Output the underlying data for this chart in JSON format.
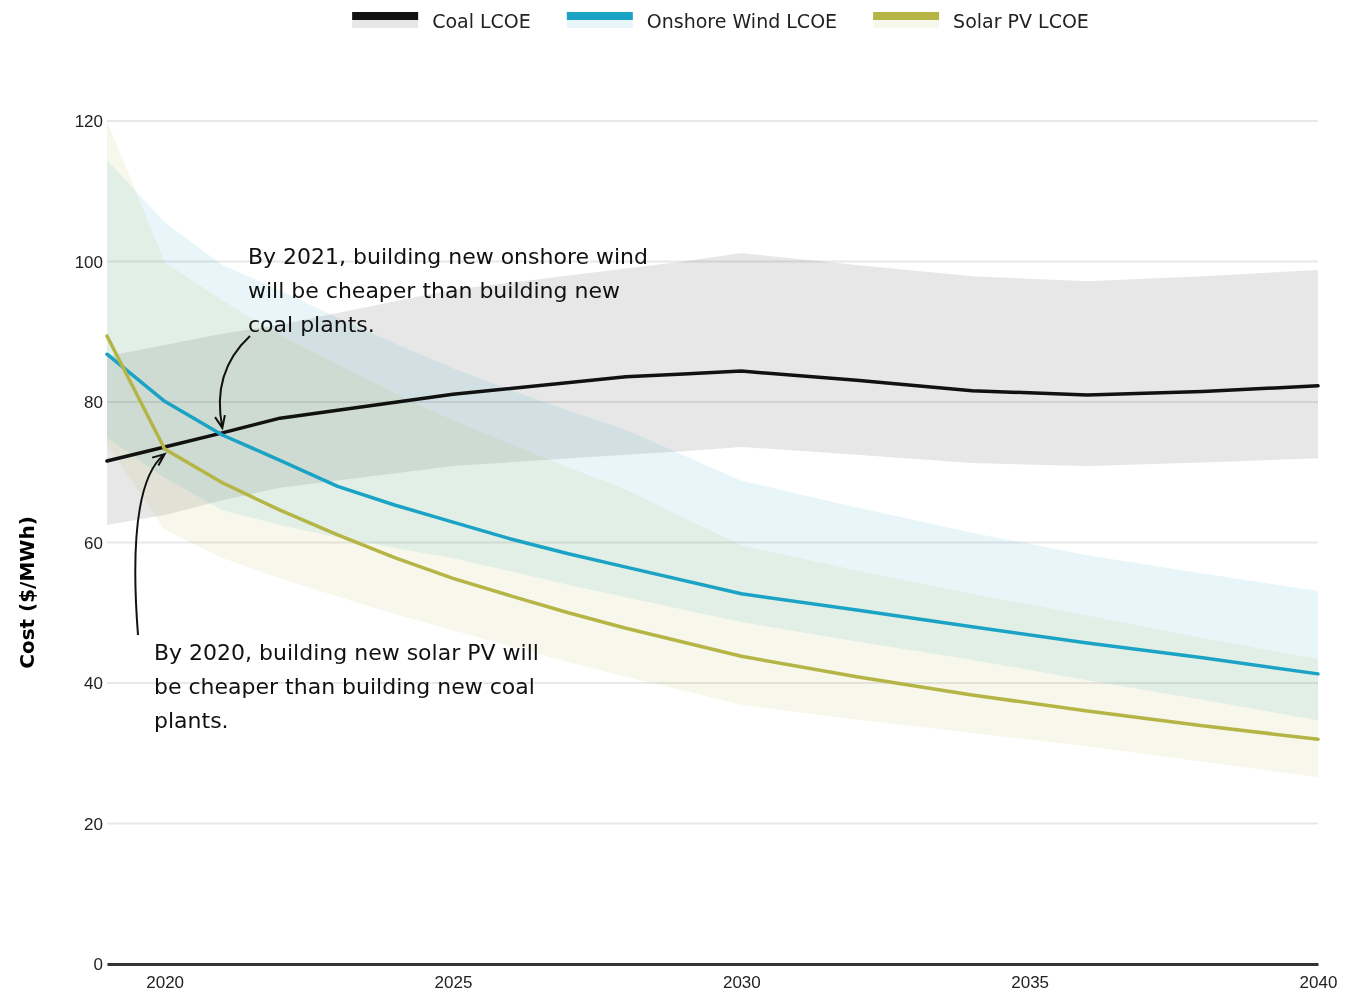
{
  "chart_data": {
    "type": "line",
    "ylabel": "Cost ($/MWh)",
    "xlim": [
      2019,
      2040
    ],
    "xticks": [
      2020,
      2025,
      2030,
      2035,
      2040
    ],
    "ylim": [
      0,
      120
    ],
    "yticks": [
      0,
      20,
      40,
      60,
      80,
      100,
      120
    ],
    "grid": "y",
    "legend": "top",
    "line_style": "solid",
    "marker": "none",
    "series": [
      {
        "name": "Coal LCOE",
        "color": "#111111",
        "x": [
          2019,
          2020,
          2021,
          2022,
          2025,
          2028,
          2029,
          2030,
          2032,
          2034,
          2036,
          2038,
          2040
        ],
        "values": [
          71.6,
          73.6,
          75.6,
          77.7,
          81.1,
          83.6,
          84.0,
          84.4,
          83.1,
          81.6,
          81.0,
          81.5,
          82.3
        ],
        "lower": [
          62.5,
          63.9,
          66,
          67.8,
          70.9,
          72.5,
          73,
          73.6,
          72.5,
          71.3,
          70.9,
          71.4,
          72
        ],
        "upper": [
          86.5,
          88.1,
          89.7,
          91,
          96,
          99,
          100,
          101.2,
          99.5,
          97.9,
          97.2,
          97.9,
          98.8
        ]
      },
      {
        "name": "Onshore Wind LCOE",
        "color": "#1ba3c6",
        "x": [
          2019,
          2020,
          2021,
          2022,
          2023,
          2024,
          2025,
          2026,
          2027,
          2028,
          2030,
          2032,
          2034,
          2036,
          2038,
          2040
        ],
        "values": [
          86.8,
          80.1,
          75.3,
          71.7,
          68.0,
          65.3,
          62.9,
          60.5,
          58.4,
          56.5,
          52.7,
          50.4,
          48.0,
          45.7,
          43.6,
          41.3
        ],
        "lower": [
          74.9,
          69.2,
          64.6,
          62.5,
          60.7,
          59.2,
          57.8,
          55.9,
          54.0,
          52.2,
          48.7,
          45.9,
          43.3,
          40.4,
          37.6,
          34.7
        ],
        "upper": [
          114.4,
          105.6,
          99.5,
          95.9,
          92,
          88.3,
          84.8,
          81.7,
          78.8,
          76,
          68.8,
          65,
          61.4,
          58.2,
          55.6,
          53.1
        ]
      },
      {
        "name": "Solar PV LCOE",
        "color": "#b5b546",
        "x": [
          2019,
          2020,
          2021,
          2022,
          2023,
          2024,
          2025,
          2026,
          2027,
          2028,
          2030,
          2032,
          2034,
          2036,
          2038,
          2040
        ],
        "values": [
          89.4,
          73.3,
          68.5,
          64.6,
          61.1,
          57.8,
          54.9,
          52.4,
          50.0,
          47.8,
          43.8,
          40.9,
          38.3,
          36.0,
          33.9,
          32.0
        ],
        "lower": [
          73.9,
          61.8,
          57.8,
          54.9,
          52.3,
          49.8,
          47.5,
          45.2,
          43.0,
          40.9,
          36.9,
          34.8,
          32.9,
          31.0,
          28.8,
          26.6
        ],
        "upper": [
          120,
          99.9,
          94.5,
          89.5,
          85.3,
          81.2,
          77.4,
          74.0,
          70.7,
          67.5,
          59.6,
          56.0,
          52.7,
          49.6,
          46.4,
          43.4
        ]
      }
    ],
    "annotations": [
      {
        "text": "By 2021, building new onshore wind will be cheaper than building new coal plants.",
        "x": 2021,
        "y": 75.6
      },
      {
        "text": "By 2020, building new solar PV will be cheaper than building new coal plants.",
        "x": 2020,
        "y": 73.3
      }
    ]
  }
}
